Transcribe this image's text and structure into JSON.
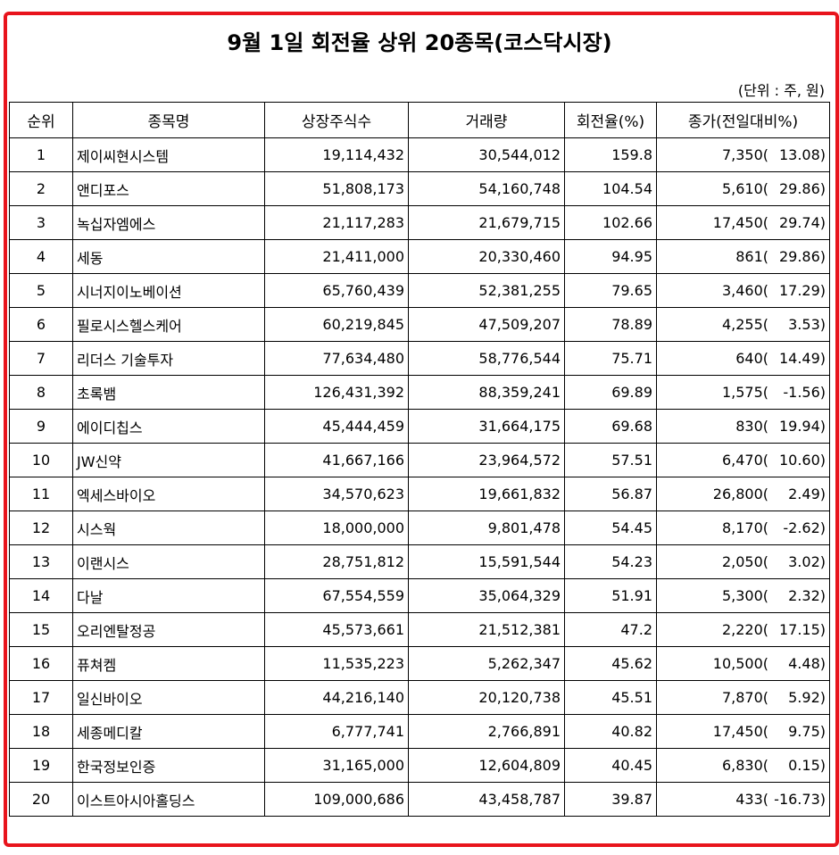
{
  "title": "9월 1일 회전율 상위 20종목(코스닥시장)",
  "unit_note": "(단위 : 주, 원)",
  "headers": {
    "rank": "순위",
    "name": "종목명",
    "shares": "상장주식수",
    "volume": "거래량",
    "turnover": "회전율(%)",
    "close": "종가(전일대비%)"
  },
  "rows": [
    {
      "rank": "1",
      "name": "제이씨현시스템",
      "shares": "19,114,432",
      "volume": "30,544,012",
      "turnover": "159.8",
      "close": "7,350(",
      "change": "13.08)"
    },
    {
      "rank": "2",
      "name": "앤디포스",
      "shares": "51,808,173",
      "volume": "54,160,748",
      "turnover": "104.54",
      "close": "5,610(",
      "change": "29.86)"
    },
    {
      "rank": "3",
      "name": "녹십자엠에스",
      "shares": "21,117,283",
      "volume": "21,679,715",
      "turnover": "102.66",
      "close": "17,450(",
      "change": "29.74)"
    },
    {
      "rank": "4",
      "name": "세동",
      "shares": "21,411,000",
      "volume": "20,330,460",
      "turnover": "94.95",
      "close": "861(",
      "change": "29.86)"
    },
    {
      "rank": "5",
      "name": "시너지이노베이션",
      "shares": "65,760,439",
      "volume": "52,381,255",
      "turnover": "79.65",
      "close": "3,460(",
      "change": "17.29)"
    },
    {
      "rank": "6",
      "name": "필로시스헬스케어",
      "shares": "60,219,845",
      "volume": "47,509,207",
      "turnover": "78.89",
      "close": "4,255(",
      "change": "3.53)"
    },
    {
      "rank": "7",
      "name": "리더스 기술투자",
      "shares": "77,634,480",
      "volume": "58,776,544",
      "turnover": "75.71",
      "close": "640(",
      "change": "14.49)"
    },
    {
      "rank": "8",
      "name": "초록뱀",
      "shares": "126,431,392",
      "volume": "88,359,241",
      "turnover": "69.89",
      "close": "1,575(",
      "change": "-1.56)"
    },
    {
      "rank": "9",
      "name": "에이디칩스",
      "shares": "45,444,459",
      "volume": "31,664,175",
      "turnover": "69.68",
      "close": "830(",
      "change": "19.94)"
    },
    {
      "rank": "10",
      "name": "JW신약",
      "shares": "41,667,166",
      "volume": "23,964,572",
      "turnover": "57.51",
      "close": "6,470(",
      "change": "10.60)"
    },
    {
      "rank": "11",
      "name": "엑세스바이오",
      "shares": "34,570,623",
      "volume": "19,661,832",
      "turnover": "56.87",
      "close": "26,800(",
      "change": "2.49)"
    },
    {
      "rank": "12",
      "name": "시스웍",
      "shares": "18,000,000",
      "volume": "9,801,478",
      "turnover": "54.45",
      "close": "8,170(",
      "change": "-2.62)"
    },
    {
      "rank": "13",
      "name": "이랜시스",
      "shares": "28,751,812",
      "volume": "15,591,544",
      "turnover": "54.23",
      "close": "2,050(",
      "change": "3.02)"
    },
    {
      "rank": "14",
      "name": "다날",
      "shares": "67,554,559",
      "volume": "35,064,329",
      "turnover": "51.91",
      "close": "5,300(",
      "change": "2.32)"
    },
    {
      "rank": "15",
      "name": "오리엔탈정공",
      "shares": "45,573,661",
      "volume": "21,512,381",
      "turnover": "47.2",
      "close": "2,220(",
      "change": "17.15)"
    },
    {
      "rank": "16",
      "name": "퓨쳐켐",
      "shares": "11,535,223",
      "volume": "5,262,347",
      "turnover": "45.62",
      "close": "10,500(",
      "change": "4.48)"
    },
    {
      "rank": "17",
      "name": "일신바이오",
      "shares": "44,216,140",
      "volume": "20,120,738",
      "turnover": "45.51",
      "close": "7,870(",
      "change": "5.92)"
    },
    {
      "rank": "18",
      "name": "세종메디칼",
      "shares": "6,777,741",
      "volume": "2,766,891",
      "turnover": "40.82",
      "close": "17,450(",
      "change": "9.75)"
    },
    {
      "rank": "19",
      "name": "한국정보인증",
      "shares": "31,165,000",
      "volume": "12,604,809",
      "turnover": "40.45",
      "close": "6,830(",
      "change": "0.15)"
    },
    {
      "rank": "20",
      "name": "이스트아시아홀딩스",
      "shares": "109,000,686",
      "volume": "43,458,787",
      "turnover": "39.87",
      "close": "433(",
      "change": "-16.73)"
    }
  ],
  "colors": {
    "frame_border": "#e8141c"
  }
}
